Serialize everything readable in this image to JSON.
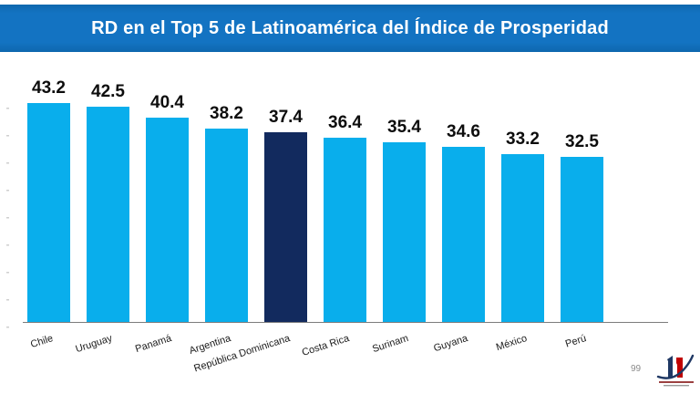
{
  "slide": {
    "title": "RD en el Top 5 de Latinoamérica del Índice de Prosperidad",
    "page_number": "99",
    "colors": {
      "banner": "#1373C2",
      "banner_edge": "#0E67AE",
      "bar": "#09AEEC",
      "highlight_bar": "#122A5E",
      "axis_line": "#7C7C7C",
      "value_label": "#0D0D0D",
      "category_label": "#1A1A1A",
      "logo_blue": "#1F3864",
      "logo_red": "#C00000"
    }
  },
  "chart_data": {
    "type": "bar",
    "title": "RD en el Top 5 de Latinoamérica del Índice de Prosperidad",
    "categories": [
      "Chile",
      "Uruguay",
      "Panamá",
      "Argentina",
      "República Dominicana",
      "Costa Rica",
      "Surinam",
      "Guyana",
      "México",
      "Perú"
    ],
    "values": [
      43.2,
      42.5,
      40.4,
      38.2,
      37.4,
      36.4,
      35.4,
      34.6,
      33.2,
      32.5
    ],
    "data_labels": [
      "43.2",
      "42.5",
      "40.4",
      "38.2",
      "37.4",
      "36.4",
      "35.4",
      "34.6",
      "33.2",
      "32.5"
    ],
    "highlight_index": 4,
    "highlight_category": "República Dominicana",
    "xlabel": "",
    "ylabel": "",
    "ylim": [
      0,
      45
    ],
    "grid": false,
    "legend": "none",
    "category_label_rotation_deg": -18
  }
}
